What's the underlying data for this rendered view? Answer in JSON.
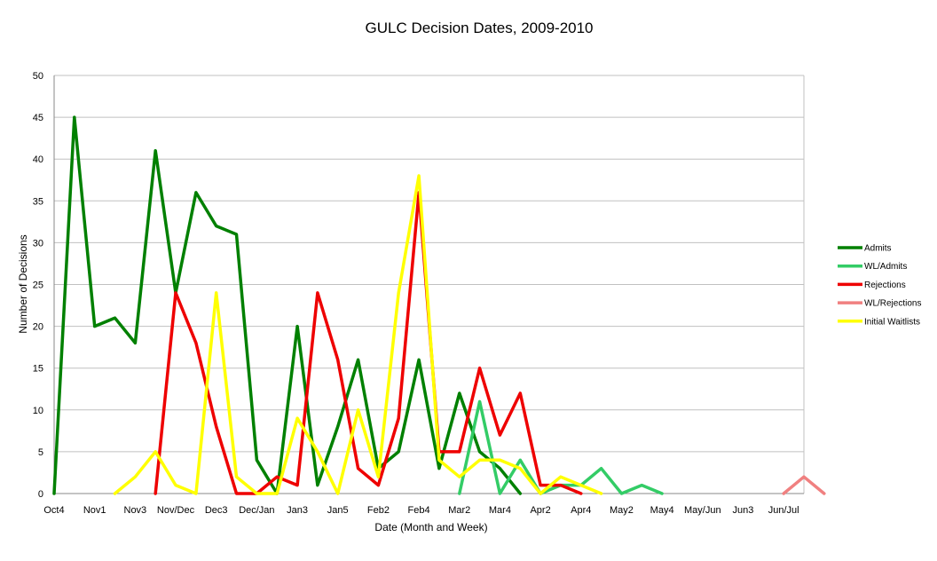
{
  "chart_data": {
    "type": "line",
    "title": "GULC Decision Dates, 2009-2010",
    "xlabel": "Date (Month and Week)",
    "ylabel": "Number of Decisions",
    "ylim": [
      0,
      50
    ],
    "yticks": [
      0,
      5,
      10,
      15,
      20,
      25,
      30,
      35,
      40,
      45,
      50
    ],
    "grid": true,
    "legend_position": "right",
    "x_labels": [
      "Oct4",
      "",
      "Nov1",
      "",
      "Nov3",
      "",
      "Nov/Dec",
      "",
      "Dec3",
      "",
      "Dec/Jan",
      "",
      "Jan3",
      "",
      "Jan5",
      "",
      "Feb2",
      "",
      "Feb4",
      "",
      "Mar2",
      "",
      "Mar4",
      "",
      "Apr2",
      "",
      "Apr4",
      "",
      "May2",
      "",
      "May4",
      "",
      "May/Jun",
      "",
      "Jun3",
      "",
      "Jun/Jul",
      ""
    ],
    "series": [
      {
        "name": "Admits",
        "color": "#008000",
        "values": [
          0,
          45,
          20,
          21,
          18,
          41,
          24,
          36,
          32,
          31,
          4,
          0,
          20,
          1,
          8,
          16,
          3,
          5,
          16,
          3,
          12,
          5,
          3,
          0,
          null,
          null,
          null,
          null,
          null,
          null,
          null,
          null,
          null,
          null,
          null,
          null,
          null,
          null
        ]
      },
      {
        "name": "WL/Admits",
        "color": "#33cc66",
        "values": [
          null,
          null,
          null,
          null,
          null,
          null,
          null,
          null,
          null,
          null,
          null,
          null,
          null,
          null,
          null,
          null,
          null,
          null,
          null,
          null,
          0,
          11,
          0,
          4,
          0,
          1,
          1,
          3,
          0,
          1,
          0,
          null,
          null,
          null,
          null,
          null,
          null,
          null
        ]
      },
      {
        "name": "Rejections",
        "color": "#ee0000",
        "values": [
          null,
          null,
          null,
          null,
          null,
          0,
          24,
          18,
          8,
          0,
          0,
          2,
          1,
          24,
          16,
          3,
          1,
          9,
          36,
          5,
          5,
          15,
          7,
          12,
          1,
          1,
          0,
          null,
          null,
          null,
          null,
          null,
          null,
          null,
          null,
          null,
          null,
          null
        ]
      },
      {
        "name": "WL/Rejections",
        "color": "#f08080",
        "values": [
          null,
          null,
          null,
          null,
          null,
          null,
          null,
          null,
          null,
          null,
          null,
          null,
          null,
          null,
          null,
          null,
          null,
          null,
          null,
          null,
          null,
          null,
          null,
          null,
          null,
          null,
          null,
          null,
          null,
          null,
          null,
          null,
          null,
          null,
          null,
          null,
          0,
          2,
          0
        ]
      },
      {
        "name": "Initial Waitlists",
        "color": "#ffff00",
        "values": [
          null,
          null,
          null,
          0,
          2,
          5,
          1,
          0,
          24,
          2,
          0,
          0,
          9,
          5,
          0,
          10,
          2,
          24,
          38,
          4,
          2,
          4,
          4,
          3,
          0,
          2,
          1,
          0,
          null,
          null,
          null,
          null,
          null,
          null,
          null,
          null,
          null,
          null
        ]
      }
    ]
  }
}
